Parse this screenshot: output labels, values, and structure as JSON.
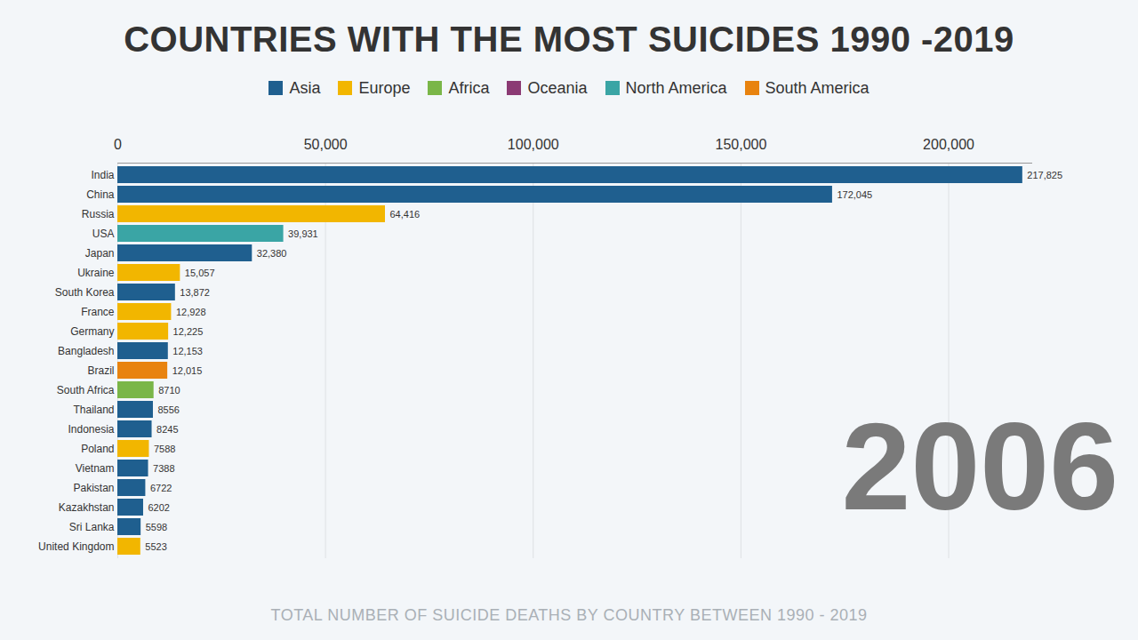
{
  "chart_data": {
    "type": "bar",
    "orientation": "horizontal",
    "title": "COUNTRIES WITH THE MOST SUICIDES 1990 -2019",
    "caption": "TOTAL NUMBER OF SUICIDE DEATHS BY COUNTRY BETWEEN 1990 - 2019",
    "annotations": [
      "2006"
    ],
    "categories": [
      "India",
      "China",
      "Russia",
      "USA",
      "Japan",
      "Ukraine",
      "South Korea",
      "France",
      "Germany",
      "Bangladesh",
      "Brazil",
      "South Africa",
      "Thailand",
      "Indonesia",
      "Poland",
      "Vietnam",
      "Pakistan",
      "Kazakhstan",
      "Sri Lanka",
      "United Kingdom"
    ],
    "series": [
      {
        "name": "Asia",
        "color": "#1f5f8f",
        "values": [
          217825,
          172045,
          null,
          null,
          32380,
          null,
          13872,
          null,
          null,
          12153,
          null,
          null,
          8556,
          8245,
          null,
          7388,
          6722,
          6202,
          5598,
          null
        ],
        "value_labels": [
          "217,825",
          "172,045",
          null,
          null,
          "32,380",
          null,
          "13,872",
          null,
          null,
          "12,153",
          null,
          null,
          "8556",
          "8245",
          null,
          "7388",
          "6722",
          "6202",
          "5598",
          null
        ]
      },
      {
        "name": "Europe",
        "color": "#f2b600",
        "values": [
          null,
          null,
          64416,
          null,
          null,
          15057,
          null,
          12928,
          12225,
          null,
          null,
          null,
          null,
          null,
          7588,
          null,
          null,
          null,
          null,
          5523
        ],
        "value_labels": [
          null,
          null,
          "64,416",
          null,
          null,
          "15,057",
          null,
          "12,928",
          "12,225",
          null,
          null,
          null,
          null,
          null,
          "7588",
          null,
          null,
          null,
          null,
          "5523"
        ]
      },
      {
        "name": "Africa",
        "color": "#7ab648",
        "values": [
          null,
          null,
          null,
          null,
          null,
          null,
          null,
          null,
          null,
          null,
          null,
          8710,
          null,
          null,
          null,
          null,
          null,
          null,
          null,
          null
        ],
        "value_labels": [
          null,
          null,
          null,
          null,
          null,
          null,
          null,
          null,
          null,
          null,
          null,
          "8710",
          null,
          null,
          null,
          null,
          null,
          null,
          null,
          null
        ]
      },
      {
        "name": "Oceania",
        "color": "#8b3a74",
        "values": [
          null,
          null,
          null,
          null,
          null,
          null,
          null,
          null,
          null,
          null,
          null,
          null,
          null,
          null,
          null,
          null,
          null,
          null,
          null,
          null
        ],
        "value_labels": [
          null,
          null,
          null,
          null,
          null,
          null,
          null,
          null,
          null,
          null,
          null,
          null,
          null,
          null,
          null,
          null,
          null,
          null,
          null,
          null
        ]
      },
      {
        "name": "North America",
        "color": "#3aa5a5",
        "values": [
          null,
          null,
          null,
          39931,
          null,
          null,
          null,
          null,
          null,
          null,
          null,
          null,
          null,
          null,
          null,
          null,
          null,
          null,
          null,
          null
        ],
        "value_labels": [
          null,
          null,
          null,
          "39,931",
          null,
          null,
          null,
          null,
          null,
          null,
          null,
          null,
          null,
          null,
          null,
          null,
          null,
          null,
          null,
          null
        ]
      },
      {
        "name": "South America",
        "color": "#e8830f",
        "values": [
          null,
          null,
          null,
          null,
          null,
          null,
          null,
          null,
          null,
          null,
          12015,
          null,
          null,
          null,
          null,
          null,
          null,
          null,
          null,
          null
        ],
        "value_labels": [
          null,
          null,
          null,
          null,
          null,
          null,
          null,
          null,
          null,
          null,
          "12,015",
          null,
          null,
          null,
          null,
          null,
          null,
          null,
          null,
          null
        ]
      }
    ],
    "xlim": [
      0,
      220000
    ],
    "xticks": [
      0,
      {
        "value": 50000,
        "label": "50,000"
      },
      {
        "value": 100000,
        "label": "100,000"
      },
      {
        "value": 150000,
        "label": "150,000"
      },
      {
        "value": 200000,
        "label": "200,000"
      }
    ],
    "grid": true,
    "data_labels": true,
    "legend": "top"
  }
}
